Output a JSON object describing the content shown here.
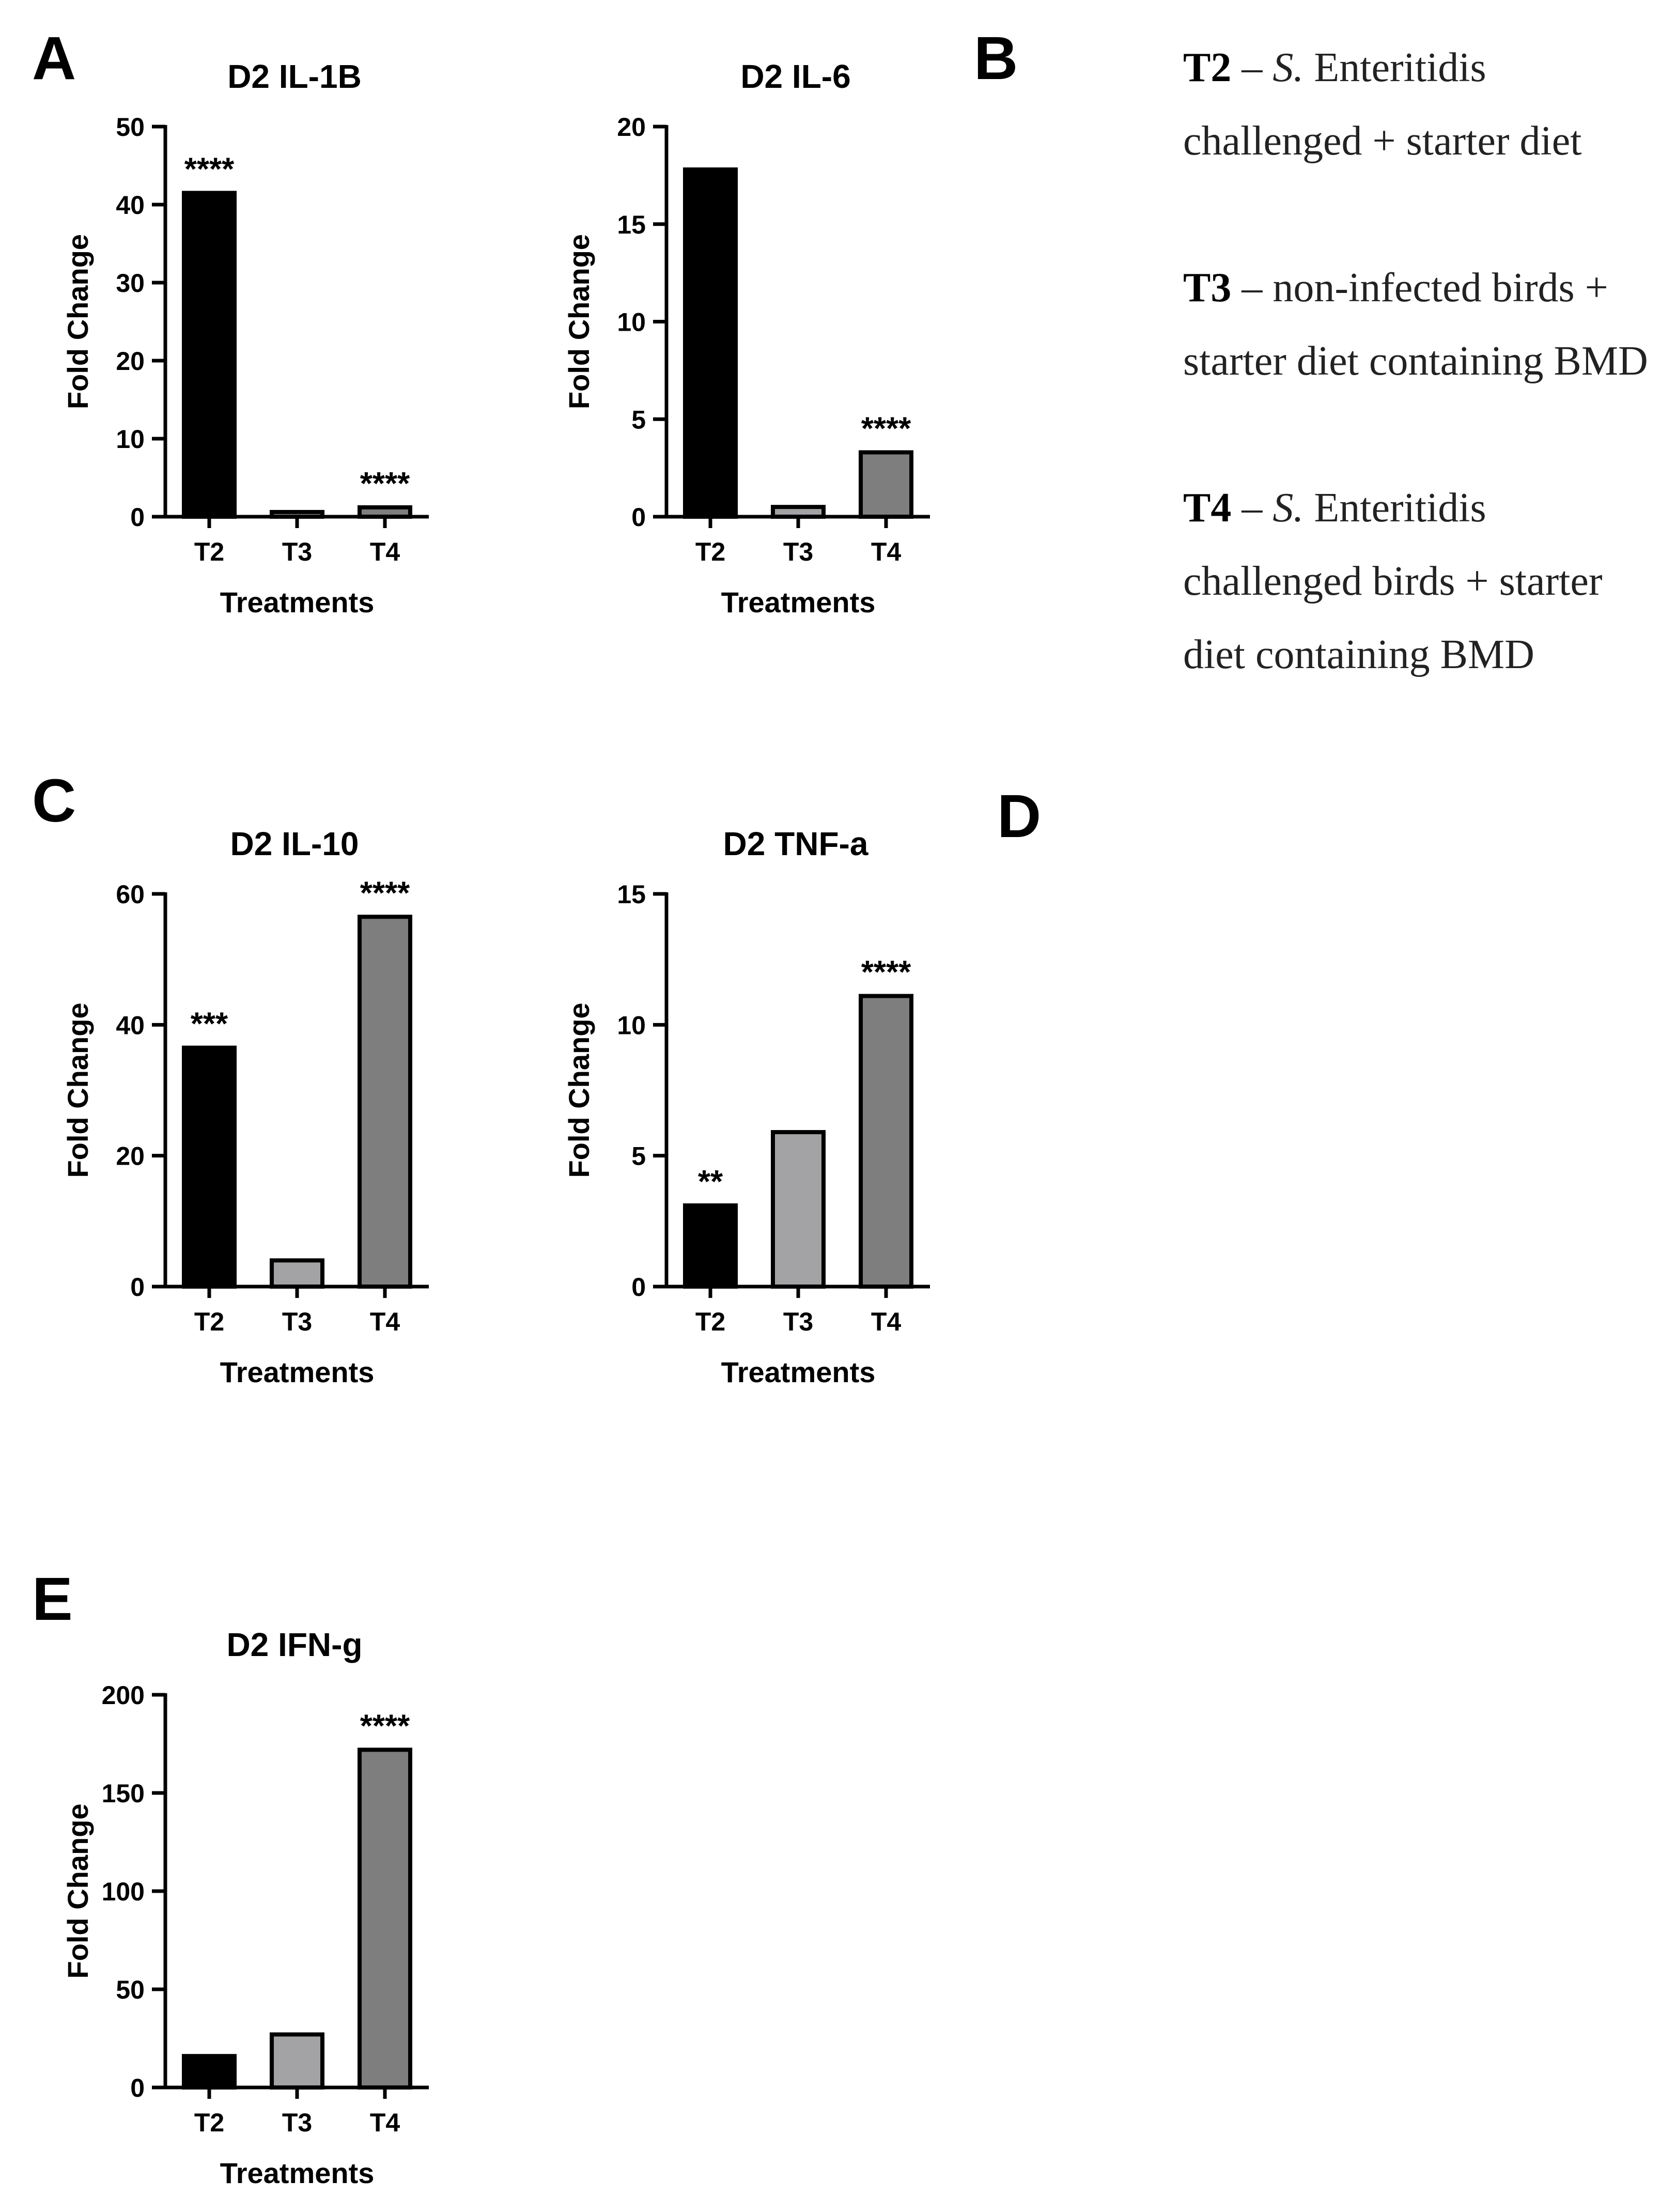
{
  "panel_letters": [
    "A",
    "B",
    "C",
    "D",
    "E"
  ],
  "legend": [
    {
      "code": "T2",
      "dash": " – ",
      "pre": "",
      "italic": "S.",
      "text": " Enteritidis challenged + starter diet"
    },
    {
      "code": "T3",
      "dash": " – ",
      "pre": "non-infected birds + starter diet containing BMD",
      "italic": "",
      "text": ""
    },
    {
      "code": "T4",
      "dash": " – ",
      "pre": "",
      "italic": "S.",
      "text": " Enteritidis challenged birds + starter diet containing BMD"
    }
  ],
  "colors": {
    "T2": "#000000",
    "T3": "#a3a3a6",
    "T4": "#7e7e7e",
    "axis": "#000000"
  },
  "chart_data": [
    {
      "type": "bar",
      "title": "D2  IL-1B",
      "xlabel": "Treatments",
      "ylabel": "Fold Change",
      "categories": [
        "T2",
        "T3",
        "T4"
      ],
      "values": [
        41.5,
        0.6,
        1.2
      ],
      "ylim": [
        0,
        50
      ],
      "yticks": [
        0,
        10,
        20,
        30,
        40,
        50
      ],
      "significance": [
        "****",
        "",
        "****"
      ]
    },
    {
      "type": "bar",
      "title": "D2 IL-6",
      "xlabel": "Treatments",
      "ylabel": "Fold Change",
      "categories": [
        "T2",
        "T3",
        "T4"
      ],
      "values": [
        17.8,
        0.5,
        3.3
      ],
      "ylim": [
        0,
        20
      ],
      "yticks": [
        0,
        5,
        10,
        15,
        20
      ],
      "significance": [
        "",
        "",
        "****"
      ]
    },
    {
      "type": "bar",
      "title": "D2 IL-10",
      "xlabel": "Treatments",
      "ylabel": "Fold Change",
      "categories": [
        "T2",
        "T3",
        "T4"
      ],
      "values": [
        36.5,
        4.0,
        56.5
      ],
      "ylim": [
        0,
        60
      ],
      "yticks": [
        0,
        20,
        40,
        60
      ],
      "significance": [
        "***",
        "",
        "****"
      ]
    },
    {
      "type": "bar",
      "title": "D2 TNF-a",
      "xlabel": "Treatments",
      "ylabel": "Fold Change",
      "categories": [
        "T2",
        "T3",
        "T4"
      ],
      "values": [
        3.1,
        5.9,
        11.1
      ],
      "ylim": [
        0,
        15
      ],
      "yticks": [
        0,
        5,
        10,
        15
      ],
      "significance": [
        "**",
        "",
        "****"
      ]
    },
    {
      "type": "bar",
      "title": "D2 IFN-g",
      "xlabel": "Treatments",
      "ylabel": "Fold Change",
      "categories": [
        "T2",
        "T3",
        "T4"
      ],
      "values": [
        16,
        27,
        172
      ],
      "ylim": [
        0,
        200
      ],
      "yticks": [
        0,
        50,
        100,
        150,
        200
      ],
      "significance": [
        "",
        "",
        "****"
      ]
    }
  ]
}
